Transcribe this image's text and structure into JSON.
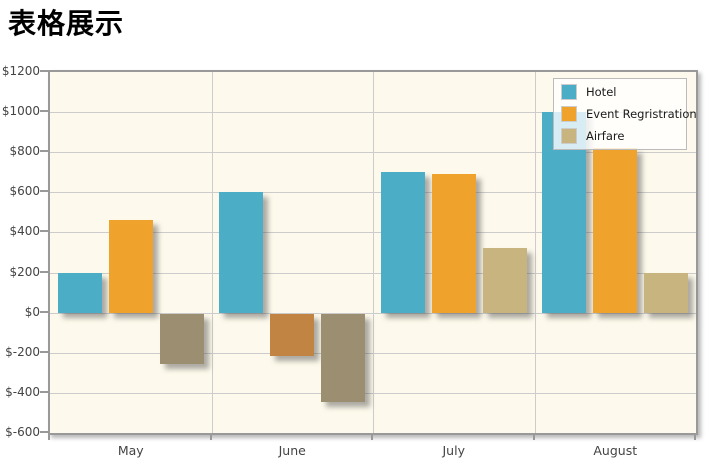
{
  "page": {
    "title": "表格展示"
  },
  "chart_data": {
    "type": "bar",
    "title": "表格展示",
    "categories": [
      "May",
      "June",
      "July",
      "August"
    ],
    "series": [
      {
        "name": "Hotel",
        "values": [
          200,
          600,
          700,
          1000
        ],
        "color": "#4BAEC6"
      },
      {
        "name": "Event Regristration",
        "values": [
          460,
          -210,
          690,
          820
        ],
        "color": "#EFA32D",
        "negative_color": "#C28442"
      },
      {
        "name": "Airfare",
        "values": [
          -250,
          -440,
          320,
          200
        ],
        "color": "#C7B47E",
        "negative_color": "#9C8F71"
      }
    ],
    "ylim": [
      -600,
      1200
    ],
    "y_tick_step": 200,
    "y_tick_labels": [
      "$1200",
      "$1000",
      "$800",
      "$600",
      "$400",
      "$200",
      "$0",
      "$-200",
      "$-400",
      "$-600"
    ],
    "grid": true,
    "legend_position": "top-right",
    "colors": {
      "plot_background": "#FDF9EC",
      "grid_line": "#CCCCCC",
      "plot_border": "#999999",
      "axis_label": "#444444"
    }
  }
}
